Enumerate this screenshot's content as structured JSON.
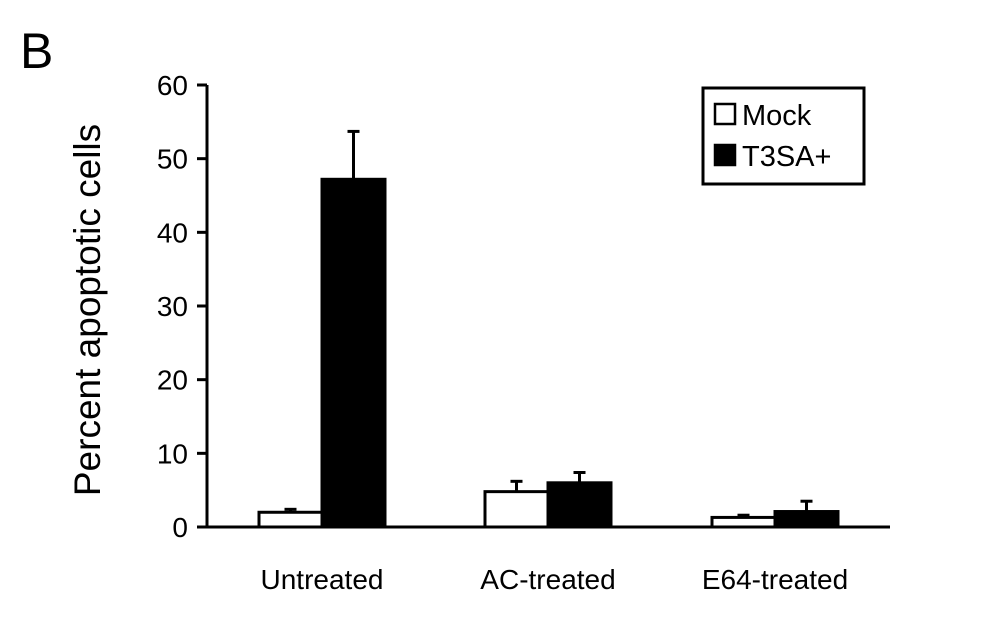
{
  "panel_letter": "B",
  "chart_data": {
    "type": "bar",
    "title": "",
    "xlabel": "",
    "ylabel": "Percent apoptotic cells",
    "ylim": [
      0,
      60
    ],
    "yticks": [
      0,
      10,
      20,
      30,
      40,
      50,
      60
    ],
    "categories": [
      "Untreated",
      "AC-treated",
      "E64-treated"
    ],
    "series": [
      {
        "name": "Mock",
        "values": [
          2.0,
          4.8,
          1.3
        ],
        "errors": [
          0.4,
          1.4,
          0.3
        ],
        "color": "#ffffff"
      },
      {
        "name": "T3SA+",
        "values": [
          47.2,
          6.0,
          2.1
        ],
        "errors": [
          6.5,
          1.4,
          1.4
        ],
        "color": "#000000"
      }
    ],
    "legend_position": "top-right",
    "grid": false
  }
}
